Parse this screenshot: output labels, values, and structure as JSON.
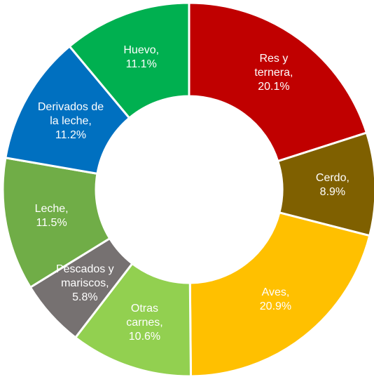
{
  "chart_data": {
    "type": "donut",
    "categories": [
      "Res y ternera,",
      "Cerdo,",
      "Aves,",
      "Otras carnes,",
      "Pescados y mariscos,",
      "Leche,",
      "Derivados de la leche,",
      "Huevo,"
    ],
    "values": [
      20.1,
      8.9,
      20.9,
      10.6,
      5.8,
      11.5,
      11.2,
      11.1
    ],
    "value_labels": [
      "20.1%",
      "8.9%",
      "20.9%",
      "10.6%",
      "5.8%",
      "11.5%",
      "11.2%",
      "11.1%"
    ],
    "colors": [
      "#c00000",
      "#7f6000",
      "#ffc000",
      "#92d050",
      "#767171",
      "#70ad47",
      "#0070c0",
      "#00b050"
    ]
  }
}
